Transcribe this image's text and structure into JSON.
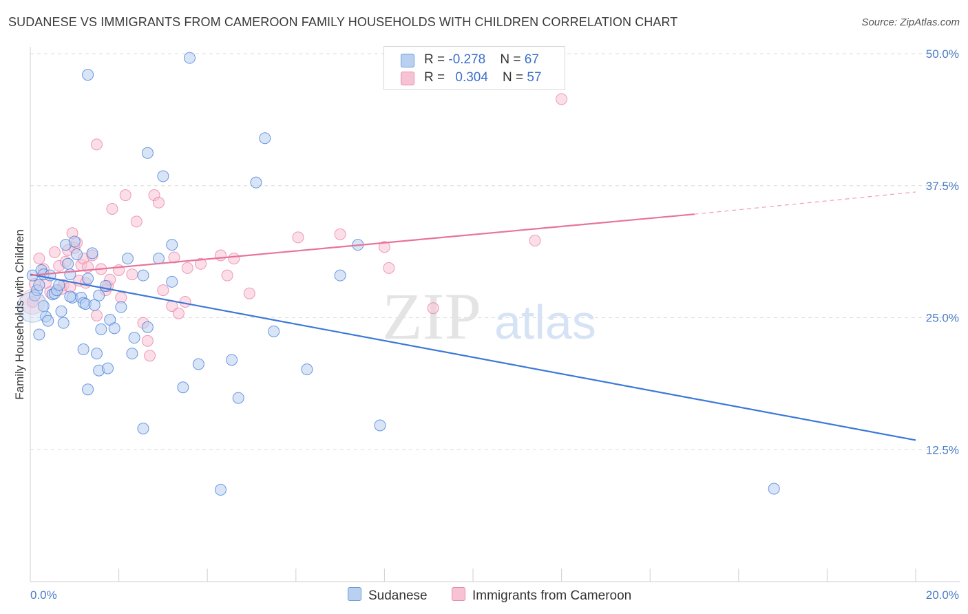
{
  "title": "SUDANESE VS IMMIGRANTS FROM CAMEROON FAMILY HOUSEHOLDS WITH CHILDREN CORRELATION CHART",
  "source": "Source: ZipAtlas.com",
  "watermark": {
    "zip": "ZIP",
    "atlas": "atlas"
  },
  "legend_top": {
    "rows": [
      {
        "r_label": "R = ",
        "r_value": "-0.278",
        "n_label": "N = ",
        "n_value": "67"
      },
      {
        "r_label": "R = ",
        "r_value": "0.304",
        "n_label": "N = ",
        "n_value": "57"
      }
    ]
  },
  "legend_bottom": {
    "series1": "Sudanese",
    "series2": "Immigrants from Cameroon"
  },
  "colors": {
    "blue": "#3b78d8",
    "blue_fill": "#b9d0f1",
    "pink": "#e8739a",
    "pink_fill": "#f7c3d4",
    "tick": "#4a7cc7",
    "grid": "#dcdcdc"
  },
  "chart_data": {
    "type": "scatter",
    "title": "SUDANESE VS IMMIGRANTS FROM CAMEROON FAMILY HOUSEHOLDS WITH CHILDREN CORRELATION CHART",
    "xlabel": "",
    "ylabel": "Family Households with Children",
    "xlim": [
      0,
      20
    ],
    "ylim": [
      0,
      50
    ],
    "x_tick_labels": [
      "0.0%",
      "20.0%"
    ],
    "y_ticks": [
      12.5,
      25.0,
      37.5,
      50.0
    ],
    "y_tick_labels": [
      "12.5%",
      "25.0%",
      "37.5%",
      "50.0%"
    ],
    "grid": true,
    "legend_position": "top-center",
    "series": [
      {
        "name": "Sudanese",
        "r": -0.278,
        "n": 67,
        "trend": {
          "x": [
            0.0,
            20.0
          ],
          "y": [
            29.1,
            13.4
          ]
        },
        "points": [
          [
            0.05,
            29.0
          ],
          [
            0.1,
            27.1
          ],
          [
            0.15,
            27.6
          ],
          [
            0.2,
            28.1
          ],
          [
            0.25,
            29.5
          ],
          [
            0.3,
            29.1
          ],
          [
            0.35,
            25.1
          ],
          [
            0.4,
            24.7
          ],
          [
            0.45,
            29.0
          ],
          [
            0.5,
            27.2
          ],
          [
            0.55,
            27.3
          ],
          [
            0.6,
            27.6
          ],
          [
            0.65,
            28.1
          ],
          [
            0.7,
            25.6
          ],
          [
            0.75,
            24.5
          ],
          [
            0.8,
            31.9
          ],
          [
            0.85,
            30.1
          ],
          [
            0.9,
            29.1
          ],
          [
            0.95,
            26.9
          ],
          [
            1.0,
            32.2
          ],
          [
            1.05,
            31.0
          ],
          [
            1.15,
            26.9
          ],
          [
            1.2,
            26.4
          ],
          [
            1.25,
            26.3
          ],
          [
            1.3,
            28.7
          ],
          [
            1.4,
            31.1
          ],
          [
            1.45,
            26.2
          ],
          [
            1.55,
            27.1
          ],
          [
            1.6,
            23.9
          ],
          [
            1.7,
            28.0
          ],
          [
            1.8,
            24.8
          ],
          [
            1.9,
            24.0
          ],
          [
            2.05,
            26.0
          ],
          [
            2.2,
            30.6
          ],
          [
            2.35,
            23.1
          ],
          [
            2.55,
            29.0
          ],
          [
            2.65,
            24.1
          ],
          [
            2.9,
            30.6
          ],
          [
            3.2,
            31.9
          ],
          [
            3.2,
            28.4
          ],
          [
            2.65,
            40.6
          ],
          [
            3.0,
            38.4
          ],
          [
            5.1,
            37.8
          ],
          [
            5.3,
            42.0
          ],
          [
            1.3,
            48.0
          ],
          [
            3.6,
            49.6
          ],
          [
            1.2,
            22.0
          ],
          [
            1.5,
            21.6
          ],
          [
            1.55,
            20.0
          ],
          [
            1.75,
            20.2
          ],
          [
            2.3,
            21.6
          ],
          [
            3.8,
            20.6
          ],
          [
            4.55,
            21.0
          ],
          [
            3.45,
            18.4
          ],
          [
            1.3,
            18.2
          ],
          [
            4.7,
            17.4
          ],
          [
            2.55,
            14.5
          ],
          [
            7.0,
            29.0
          ],
          [
            7.4,
            31.9
          ],
          [
            5.5,
            23.7
          ],
          [
            6.25,
            20.1
          ],
          [
            7.9,
            14.8
          ],
          [
            4.3,
            8.7
          ],
          [
            16.8,
            8.8
          ],
          [
            0.3,
            26.1
          ],
          [
            0.9,
            27.0
          ],
          [
            0.2,
            23.4
          ]
        ]
      },
      {
        "name": "Immigrants from Cameroon",
        "r": 0.304,
        "n": 57,
        "trend": {
          "x": [
            0.0,
            15.0
          ],
          "y": [
            29.0,
            34.8
          ]
        },
        "trend_dashed": {
          "x": [
            15.0,
            20.0
          ],
          "y": [
            34.8,
            36.9
          ]
        },
        "points": [
          [
            0.05,
            26.5
          ],
          [
            0.1,
            28.2
          ],
          [
            0.2,
            30.6
          ],
          [
            0.3,
            29.6
          ],
          [
            0.35,
            28.3
          ],
          [
            0.45,
            27.4
          ],
          [
            0.55,
            31.2
          ],
          [
            0.65,
            29.9
          ],
          [
            0.7,
            27.7
          ],
          [
            0.75,
            28.1
          ],
          [
            0.8,
            30.3
          ],
          [
            0.85,
            31.4
          ],
          [
            0.9,
            27.9
          ],
          [
            0.95,
            33.0
          ],
          [
            1.0,
            31.6
          ],
          [
            1.05,
            32.1
          ],
          [
            1.1,
            28.5
          ],
          [
            1.15,
            30.0
          ],
          [
            1.2,
            30.6
          ],
          [
            1.25,
            28.3
          ],
          [
            1.3,
            29.8
          ],
          [
            1.4,
            30.9
          ],
          [
            1.5,
            25.2
          ],
          [
            1.6,
            29.6
          ],
          [
            1.7,
            27.6
          ],
          [
            1.75,
            28.0
          ],
          [
            1.8,
            28.6
          ],
          [
            1.85,
            35.3
          ],
          [
            2.0,
            29.5
          ],
          [
            2.05,
            26.9
          ],
          [
            2.15,
            36.6
          ],
          [
            2.3,
            29.1
          ],
          [
            2.4,
            34.1
          ],
          [
            2.55,
            24.5
          ],
          [
            2.65,
            22.8
          ],
          [
            2.7,
            21.4
          ],
          [
            2.8,
            36.6
          ],
          [
            2.9,
            35.9
          ],
          [
            3.0,
            27.6
          ],
          [
            3.2,
            26.1
          ],
          [
            3.25,
            30.7
          ],
          [
            3.35,
            25.4
          ],
          [
            3.5,
            26.5
          ],
          [
            3.55,
            29.7
          ],
          [
            3.85,
            30.1
          ],
          [
            4.3,
            30.9
          ],
          [
            4.45,
            29.0
          ],
          [
            4.6,
            30.6
          ],
          [
            4.95,
            27.3
          ],
          [
            1.5,
            41.4
          ],
          [
            6.05,
            32.6
          ],
          [
            7.0,
            32.9
          ],
          [
            8.0,
            31.7
          ],
          [
            8.1,
            29.7
          ],
          [
            9.1,
            25.9
          ],
          [
            11.4,
            32.3
          ],
          [
            12.0,
            45.7
          ]
        ]
      }
    ]
  }
}
